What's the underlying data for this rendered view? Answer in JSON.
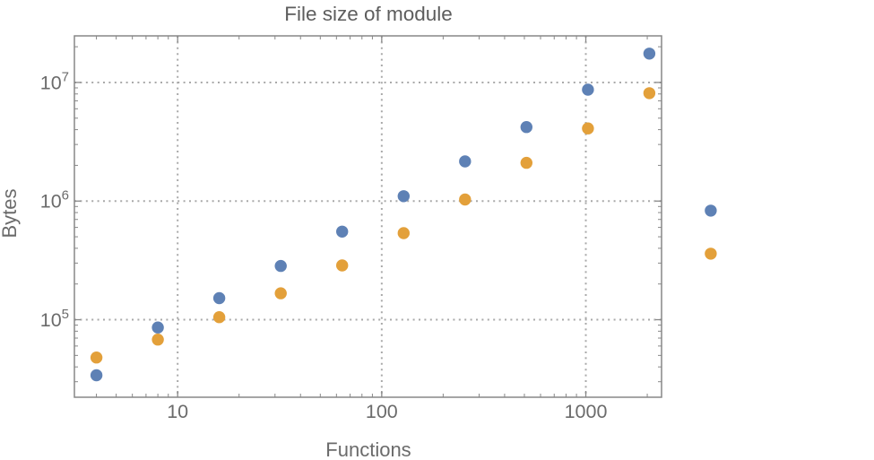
{
  "chart_data": {
    "type": "scatter",
    "title": "File size of module",
    "xlabel": "Functions",
    "ylabel": "Bytes",
    "x_scale": "log",
    "y_scale": "log",
    "xlim": [
      3.12,
      2350
    ],
    "ylim": [
      22200,
      24700000
    ],
    "x_ticks": {
      "major": [
        10,
        100,
        1000
      ],
      "labels": [
        "10",
        "100",
        "1000"
      ]
    },
    "y_ticks": {
      "major": [
        100000,
        1000000,
        10000000
      ],
      "labels": [
        {
          "base": "10",
          "exp": "5"
        },
        {
          "base": "10",
          "exp": "6"
        },
        {
          "base": "10",
          "exp": "7"
        }
      ]
    },
    "grid": {
      "x": [
        10,
        100,
        1000
      ],
      "y": [
        100000,
        1000000,
        10000000
      ],
      "style": "dotted"
    },
    "legend": "none",
    "clip_points": false,
    "x": [
      4,
      8,
      16,
      32,
      64,
      128,
      256,
      512,
      1024,
      2048,
      4096
    ],
    "series": [
      {
        "name": "blue-series",
        "color": "#5E81B5",
        "values": [
          34000,
          86000,
          152000,
          284000,
          553000,
          1100000,
          2160000,
          4210000,
          8700000,
          17500000,
          830000
        ]
      },
      {
        "name": "orange-series",
        "color": "#E3A03A",
        "values": [
          48000,
          68000,
          105000,
          167000,
          287000,
          537000,
          1030000,
          2100000,
          4100000,
          8120000,
          360000
        ]
      }
    ]
  },
  "style": {
    "background": "#FFFFFF",
    "frame_color": "#878787",
    "grid_color": "#A9A9A9",
    "text_color": "#6B6B6B",
    "title_color": "#5D5D5D"
  }
}
